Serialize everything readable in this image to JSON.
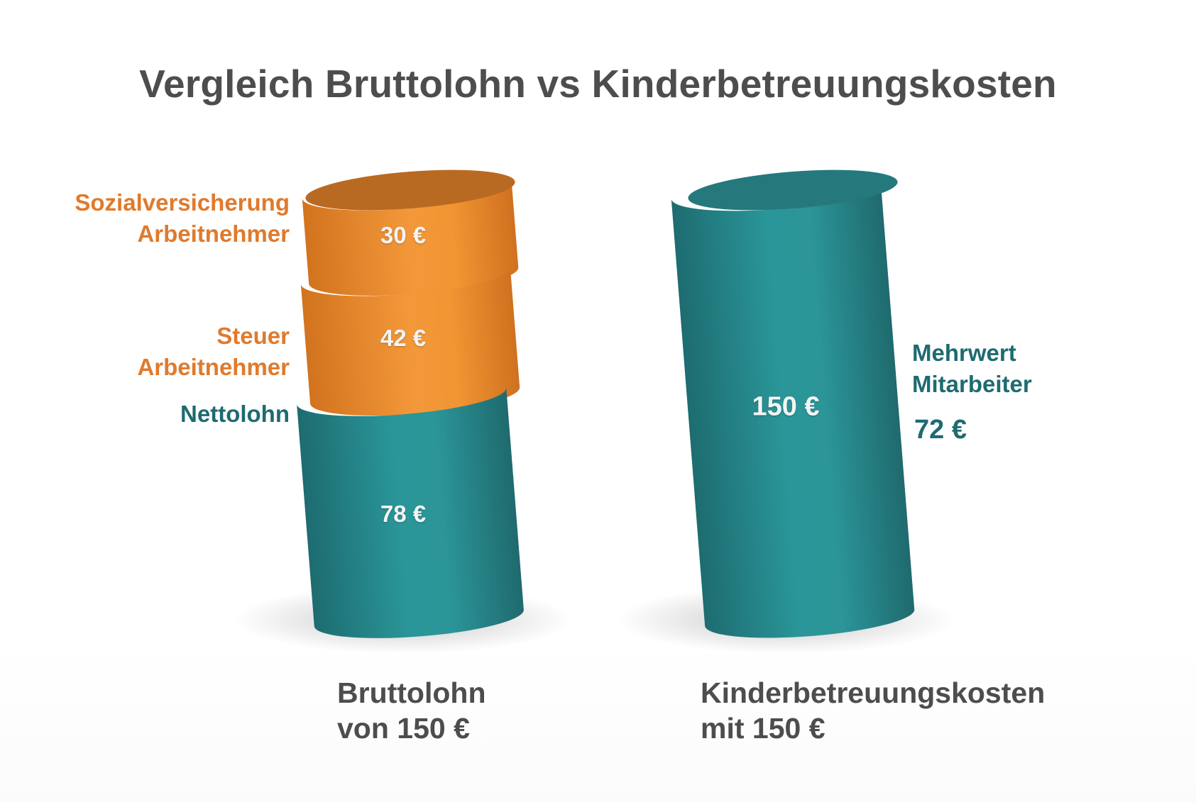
{
  "chart_data": {
    "type": "bar",
    "title": "Vergleich Bruttolohn vs Kinderbetreuungskosten",
    "categories": [
      [
        "Bruttolohn",
        "von 150 €"
      ],
      [
        "Kinderbetreuungskosten",
        "mit 150 €"
      ]
    ],
    "stacked": true,
    "series": [
      {
        "name": [
          "Nettolohn"
        ],
        "values": [
          78,
          0
        ],
        "value_labels": [
          "78 €",
          ""
        ],
        "color": "#2a8f92"
      },
      {
        "name": [
          "Steuer",
          "Arbeitnehmer"
        ],
        "values": [
          42,
          0
        ],
        "value_labels": [
          "42 €",
          ""
        ],
        "color": "#ef8f30"
      },
      {
        "name": [
          "Sozialversicherung",
          "Arbeitnehmer"
        ],
        "values": [
          30,
          0
        ],
        "value_labels": [
          "30 €",
          ""
        ],
        "color": "#ef8f30"
      },
      {
        "name": [],
        "values": [
          0,
          150
        ],
        "value_labels": [
          "",
          "150 €"
        ],
        "color": "#2a8f92"
      }
    ],
    "annotation": {
      "lines": [
        "Mehrwert",
        "Mitarbeiter"
      ],
      "value": "72 €"
    },
    "ylim": [
      0,
      150
    ],
    "xlabel": "",
    "ylabel": "",
    "grid": false
  },
  "colors": {
    "teal": "#2a8f92",
    "teal_dark": "#1e6b70",
    "orange": "#ef8f30",
    "orange_text": "#e07a2c",
    "title": "#4d4d4d"
  }
}
